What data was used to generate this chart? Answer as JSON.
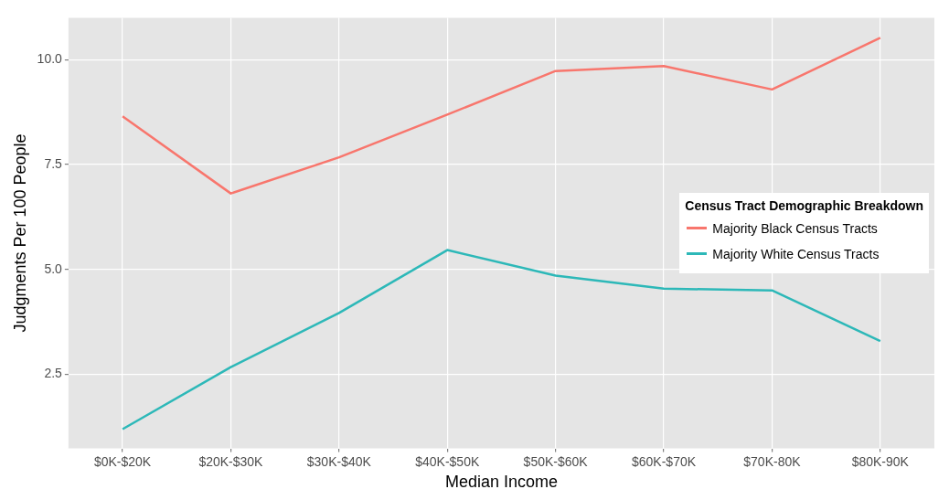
{
  "chart_data": {
    "type": "line",
    "xlabel": "Median Income",
    "ylabel": "Judgments Per 100 People",
    "legend_title": "Census Tract Demographic Breakdown",
    "categories": [
      "$0K-$20K",
      "$20K-$30K",
      "$30K-$40K",
      "$40K-$50K",
      "$50K-$60K",
      "$60K-$70K",
      "$70K-80K",
      "$80K-90K"
    ],
    "series": [
      {
        "name": "Majority Black Census Tracts",
        "color": "#f8766d",
        "values": [
          8.65,
          6.81,
          7.67,
          8.69,
          9.73,
          9.85,
          9.29,
          10.52
        ]
      },
      {
        "name": "Majority White Census Tracts",
        "color": "#2db8b8",
        "values": [
          1.19,
          2.67,
          3.96,
          5.46,
          4.85,
          4.54,
          4.5,
          3.29
        ]
      }
    ],
    "ylim": [
      0.73,
      11.0
    ],
    "yticks": [
      {
        "value": 2.5,
        "label": "2.5"
      },
      {
        "value": 5,
        "label": "5.0"
      },
      {
        "value": 7.5,
        "label": "7.5"
      },
      {
        "value": 10,
        "label": "10.0"
      }
    ],
    "grid": true,
    "legend": "right",
    "marker": "none",
    "line_style": "solid"
  }
}
